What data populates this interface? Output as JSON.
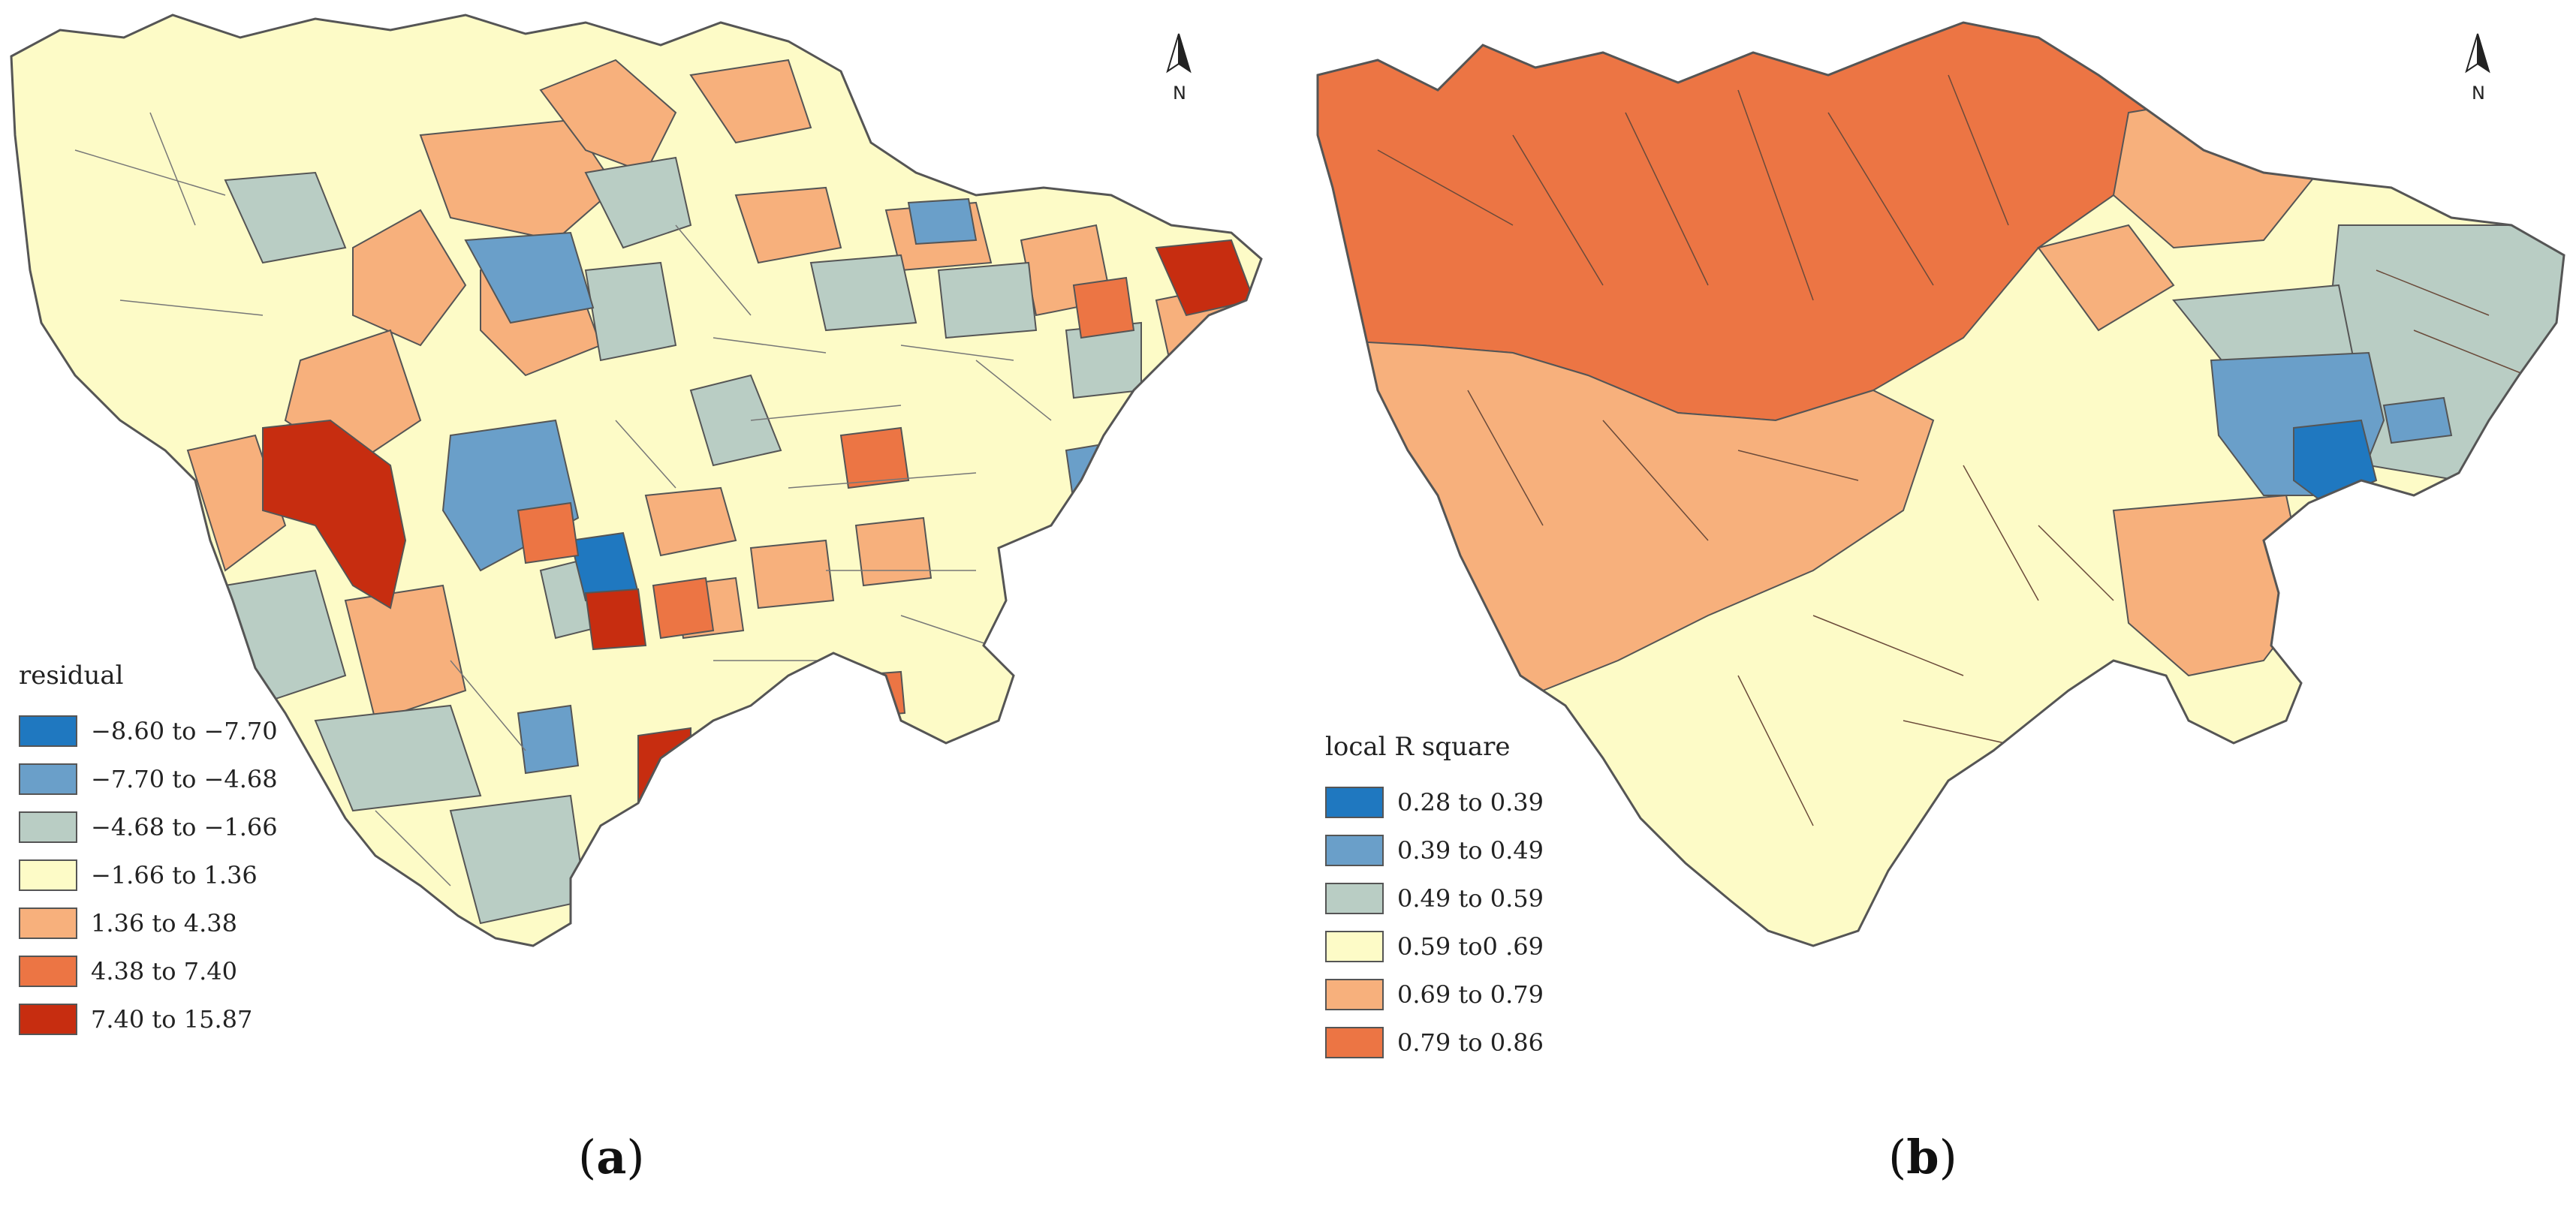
{
  "panels": [
    {
      "id": "a",
      "caption_open": "(",
      "caption_letter": "a",
      "caption_close": ")",
      "north_label": "N",
      "legend_title": "residual",
      "legend": [
        {
          "label": "−8.60 to −7.70",
          "color": "#1f78c0"
        },
        {
          "label": "−7.70 to −4.68",
          "color": "#6a9fc9"
        },
        {
          "label": "−4.68 to −1.66",
          "color": "#b9cdc4"
        },
        {
          "label": "−1.66 to 1.36",
          "color": "#fdfbc7"
        },
        {
          "label": "1.36 to 4.38",
          "color": "#f7b07c"
        },
        {
          "label": "4.38 to 7.40",
          "color": "#ec7544"
        },
        {
          "label": "7.40 to 15.87",
          "color": "#c72d10"
        }
      ]
    },
    {
      "id": "b",
      "caption_open": "(",
      "caption_letter": "b",
      "caption_close": ")",
      "north_label": "N",
      "legend_title": "local R square",
      "legend": [
        {
          "label": "0.28 to 0.39",
          "color": "#1f78c0"
        },
        {
          "label": "0.39 to 0.49",
          "color": "#6a9fc9"
        },
        {
          "label": "0.49 to 0.59",
          "color": "#b9cdc4"
        },
        {
          "label": "0.59 to0 .69",
          "color": "#fdfbc7"
        },
        {
          "label": "0.69 to 0.79",
          "color": "#f7b07c"
        },
        {
          "label": "0.79 to 0.86",
          "color": "#ec7544"
        }
      ]
    }
  ]
}
